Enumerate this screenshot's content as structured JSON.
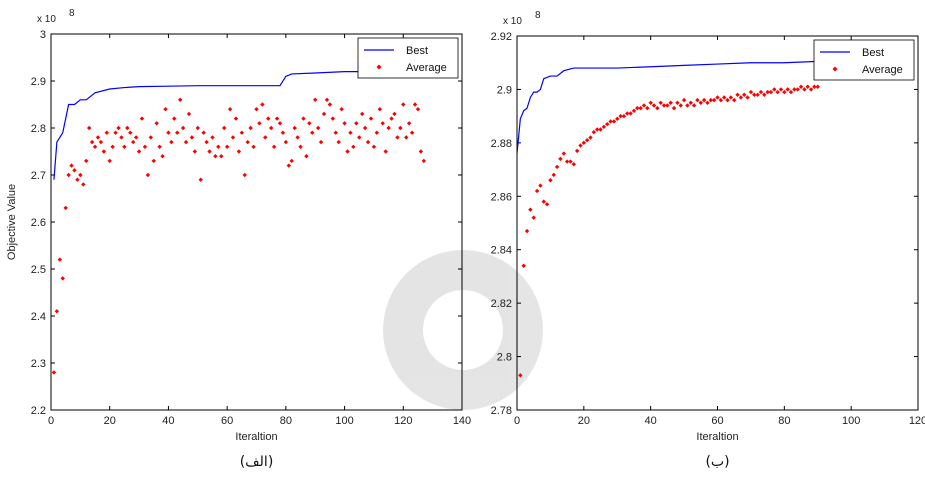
{
  "chart_data": [
    {
      "type": "line+scatter",
      "panel_caption": "(الف)",
      "exponent_label": "x 10",
      "exponent_sup": "8",
      "xlabel": "Iteraltion",
      "ylabel": "Objective Value",
      "xlim": [
        0,
        140
      ],
      "ylim": [
        2.2,
        3.0
      ],
      "x_ticks": [
        "0",
        "20",
        "40",
        "60",
        "80",
        "100",
        "120",
        "140"
      ],
      "y_ticks": [
        "2.2",
        "2.3",
        "2.4",
        "2.5",
        "2.6",
        "2.7",
        "2.8",
        "2.9",
        "3"
      ],
      "legend": {
        "position": "top-right",
        "entries": [
          "Best",
          "Average"
        ]
      },
      "series": [
        {
          "name": "Best",
          "style": "line",
          "color": "#0000ff",
          "x": [
            1,
            2,
            3,
            4,
            5,
            6,
            8,
            10,
            12,
            15,
            20,
            25,
            30,
            40,
            50,
            60,
            70,
            78,
            80,
            82,
            90,
            100,
            110,
            120,
            125
          ],
          "y": [
            2.69,
            2.77,
            2.78,
            2.79,
            2.82,
            2.85,
            2.85,
            2.86,
            2.86,
            2.875,
            2.883,
            2.886,
            2.888,
            2.889,
            2.89,
            2.89,
            2.89,
            2.89,
            2.91,
            2.915,
            2.917,
            2.92,
            2.92,
            2.921,
            2.922
          ]
        },
        {
          "name": "Average",
          "style": "markers",
          "color": "#ff0000",
          "x": [
            1,
            2,
            3,
            4,
            5,
            6,
            7,
            8,
            9,
            10,
            11,
            12,
            13,
            14,
            15,
            16,
            17,
            18,
            19,
            20,
            21,
            22,
            23,
            24,
            25,
            26,
            27,
            28,
            29,
            30,
            31,
            32,
            33,
            34,
            35,
            36,
            37,
            38,
            39,
            40,
            41,
            42,
            43,
            44,
            45,
            46,
            47,
            48,
            49,
            50,
            51,
            52,
            53,
            54,
            55,
            56,
            57,
            58,
            59,
            60,
            61,
            62,
            63,
            64,
            65,
            66,
            67,
            68,
            69,
            70,
            71,
            72,
            73,
            74,
            75,
            76,
            77,
            78,
            79,
            80,
            81,
            82,
            83,
            84,
            85,
            86,
            87,
            88,
            89,
            90,
            91,
            92,
            93,
            94,
            95,
            96,
            97,
            98,
            99,
            100,
            101,
            102,
            103,
            104,
            105,
            106,
            107,
            108,
            109,
            110,
            111,
            112,
            113,
            114,
            115,
            116,
            117,
            118,
            119,
            120,
            121,
            122,
            123,
            124,
            125,
            126,
            127
          ],
          "y": [
            2.28,
            2.41,
            2.52,
            2.48,
            2.63,
            2.7,
            2.72,
            2.71,
            2.69,
            2.7,
            2.68,
            2.73,
            2.8,
            2.77,
            2.76,
            2.78,
            2.77,
            2.75,
            2.79,
            2.73,
            2.76,
            2.79,
            2.8,
            2.78,
            2.76,
            2.8,
            2.79,
            2.77,
            2.78,
            2.75,
            2.82,
            2.76,
            2.7,
            2.78,
            2.73,
            2.81,
            2.76,
            2.74,
            2.84,
            2.79,
            2.77,
            2.82,
            2.79,
            2.86,
            2.8,
            2.77,
            2.83,
            2.78,
            2.75,
            2.8,
            2.69,
            2.79,
            2.77,
            2.75,
            2.78,
            2.74,
            2.76,
            2.74,
            2.8,
            2.76,
            2.84,
            2.78,
            2.82,
            2.75,
            2.79,
            2.7,
            2.77,
            2.8,
            2.76,
            2.84,
            2.81,
            2.85,
            2.78,
            2.82,
            2.8,
            2.76,
            2.82,
            2.81,
            2.79,
            2.77,
            2.72,
            2.73,
            2.8,
            2.78,
            2.76,
            2.82,
            2.74,
            2.81,
            2.79,
            2.86,
            2.8,
            2.77,
            2.83,
            2.86,
            2.85,
            2.82,
            2.79,
            2.77,
            2.84,
            2.81,
            2.75,
            2.79,
            2.76,
            2.81,
            2.78,
            2.83,
            2.8,
            2.77,
            2.82,
            2.76,
            2.79,
            2.84,
            2.81,
            2.75,
            2.8,
            2.82,
            2.83,
            2.78,
            2.8,
            2.85,
            2.78,
            2.81,
            2.79,
            2.85,
            2.84,
            2.75,
            2.73
          ]
        }
      ]
    },
    {
      "type": "line+scatter",
      "panel_caption": "(ب)",
      "exponent_label": "x 10",
      "exponent_sup": "8",
      "xlabel": "Iteraltion",
      "ylabel": "",
      "xlim": [
        0,
        120
      ],
      "ylim": [
        2.78,
        2.92
      ],
      "x_ticks": [
        "0",
        "20",
        "40",
        "60",
        "80",
        "100",
        "120"
      ],
      "y_ticks": [
        "2.78",
        "2.8",
        "2.82",
        "2.84",
        "2.86",
        "2.88",
        "2.9",
        "2.92"
      ],
      "legend": {
        "position": "top-right",
        "entries": [
          "Best",
          "Average"
        ]
      },
      "series": [
        {
          "name": "Best",
          "style": "line",
          "color": "#0000ff",
          "x": [
            0,
            1,
            2,
            3,
            4,
            5,
            6,
            7,
            8,
            10,
            12,
            14,
            17,
            20,
            25,
            30,
            40,
            50,
            60,
            70,
            80,
            90,
            100,
            110
          ],
          "y": [
            2.876,
            2.889,
            2.892,
            2.893,
            2.897,
            2.899,
            2.899,
            2.9,
            2.904,
            2.905,
            2.905,
            2.907,
            2.908,
            2.908,
            2.908,
            2.908,
            2.9085,
            2.909,
            2.9095,
            2.91,
            2.91,
            2.9105,
            2.911,
            2.911
          ]
        },
        {
          "name": "Average",
          "style": "markers",
          "color": "#ff0000",
          "x": [
            1,
            2,
            3,
            4,
            5,
            6,
            7,
            8,
            9,
            10,
            11,
            12,
            13,
            14,
            15,
            16,
            17,
            18,
            19,
            20,
            21,
            22,
            23,
            24,
            25,
            26,
            27,
            28,
            29,
            30,
            31,
            32,
            33,
            34,
            35,
            36,
            37,
            38,
            39,
            40,
            41,
            42,
            43,
            44,
            45,
            46,
            47,
            48,
            49,
            50,
            51,
            52,
            53,
            54,
            55,
            56,
            57,
            58,
            59,
            60,
            61,
            62,
            63,
            64,
            65,
            66,
            67,
            68,
            69,
            70,
            71,
            72,
            73,
            74,
            75,
            76,
            77,
            78,
            79,
            80,
            81,
            82,
            83,
            84,
            85,
            86,
            87,
            88,
            89,
            90
          ],
          "y": [
            2.793,
            2.834,
            2.847,
            2.855,
            2.852,
            2.862,
            2.864,
            2.858,
            2.857,
            2.866,
            2.868,
            2.871,
            2.874,
            2.876,
            2.873,
            2.873,
            2.872,
            2.877,
            2.879,
            2.88,
            2.881,
            2.882,
            2.884,
            2.885,
            2.885,
            2.886,
            2.887,
            2.888,
            2.888,
            2.889,
            2.89,
            2.89,
            2.891,
            2.891,
            2.892,
            2.893,
            2.893,
            2.894,
            2.893,
            2.895,
            2.894,
            2.893,
            2.895,
            2.894,
            2.894,
            2.895,
            2.893,
            2.895,
            2.894,
            2.896,
            2.894,
            2.895,
            2.894,
            2.896,
            2.895,
            2.896,
            2.895,
            2.896,
            2.896,
            2.897,
            2.896,
            2.897,
            2.896,
            2.897,
            2.896,
            2.898,
            2.897,
            2.898,
            2.897,
            2.899,
            2.898,
            2.898,
            2.899,
            2.898,
            2.899,
            2.899,
            2.9,
            2.899,
            2.9,
            2.899,
            2.9,
            2.899,
            2.9,
            2.9,
            2.901,
            2.9,
            2.901,
            2.9,
            2.901,
            2.901
          ]
        }
      ]
    }
  ]
}
